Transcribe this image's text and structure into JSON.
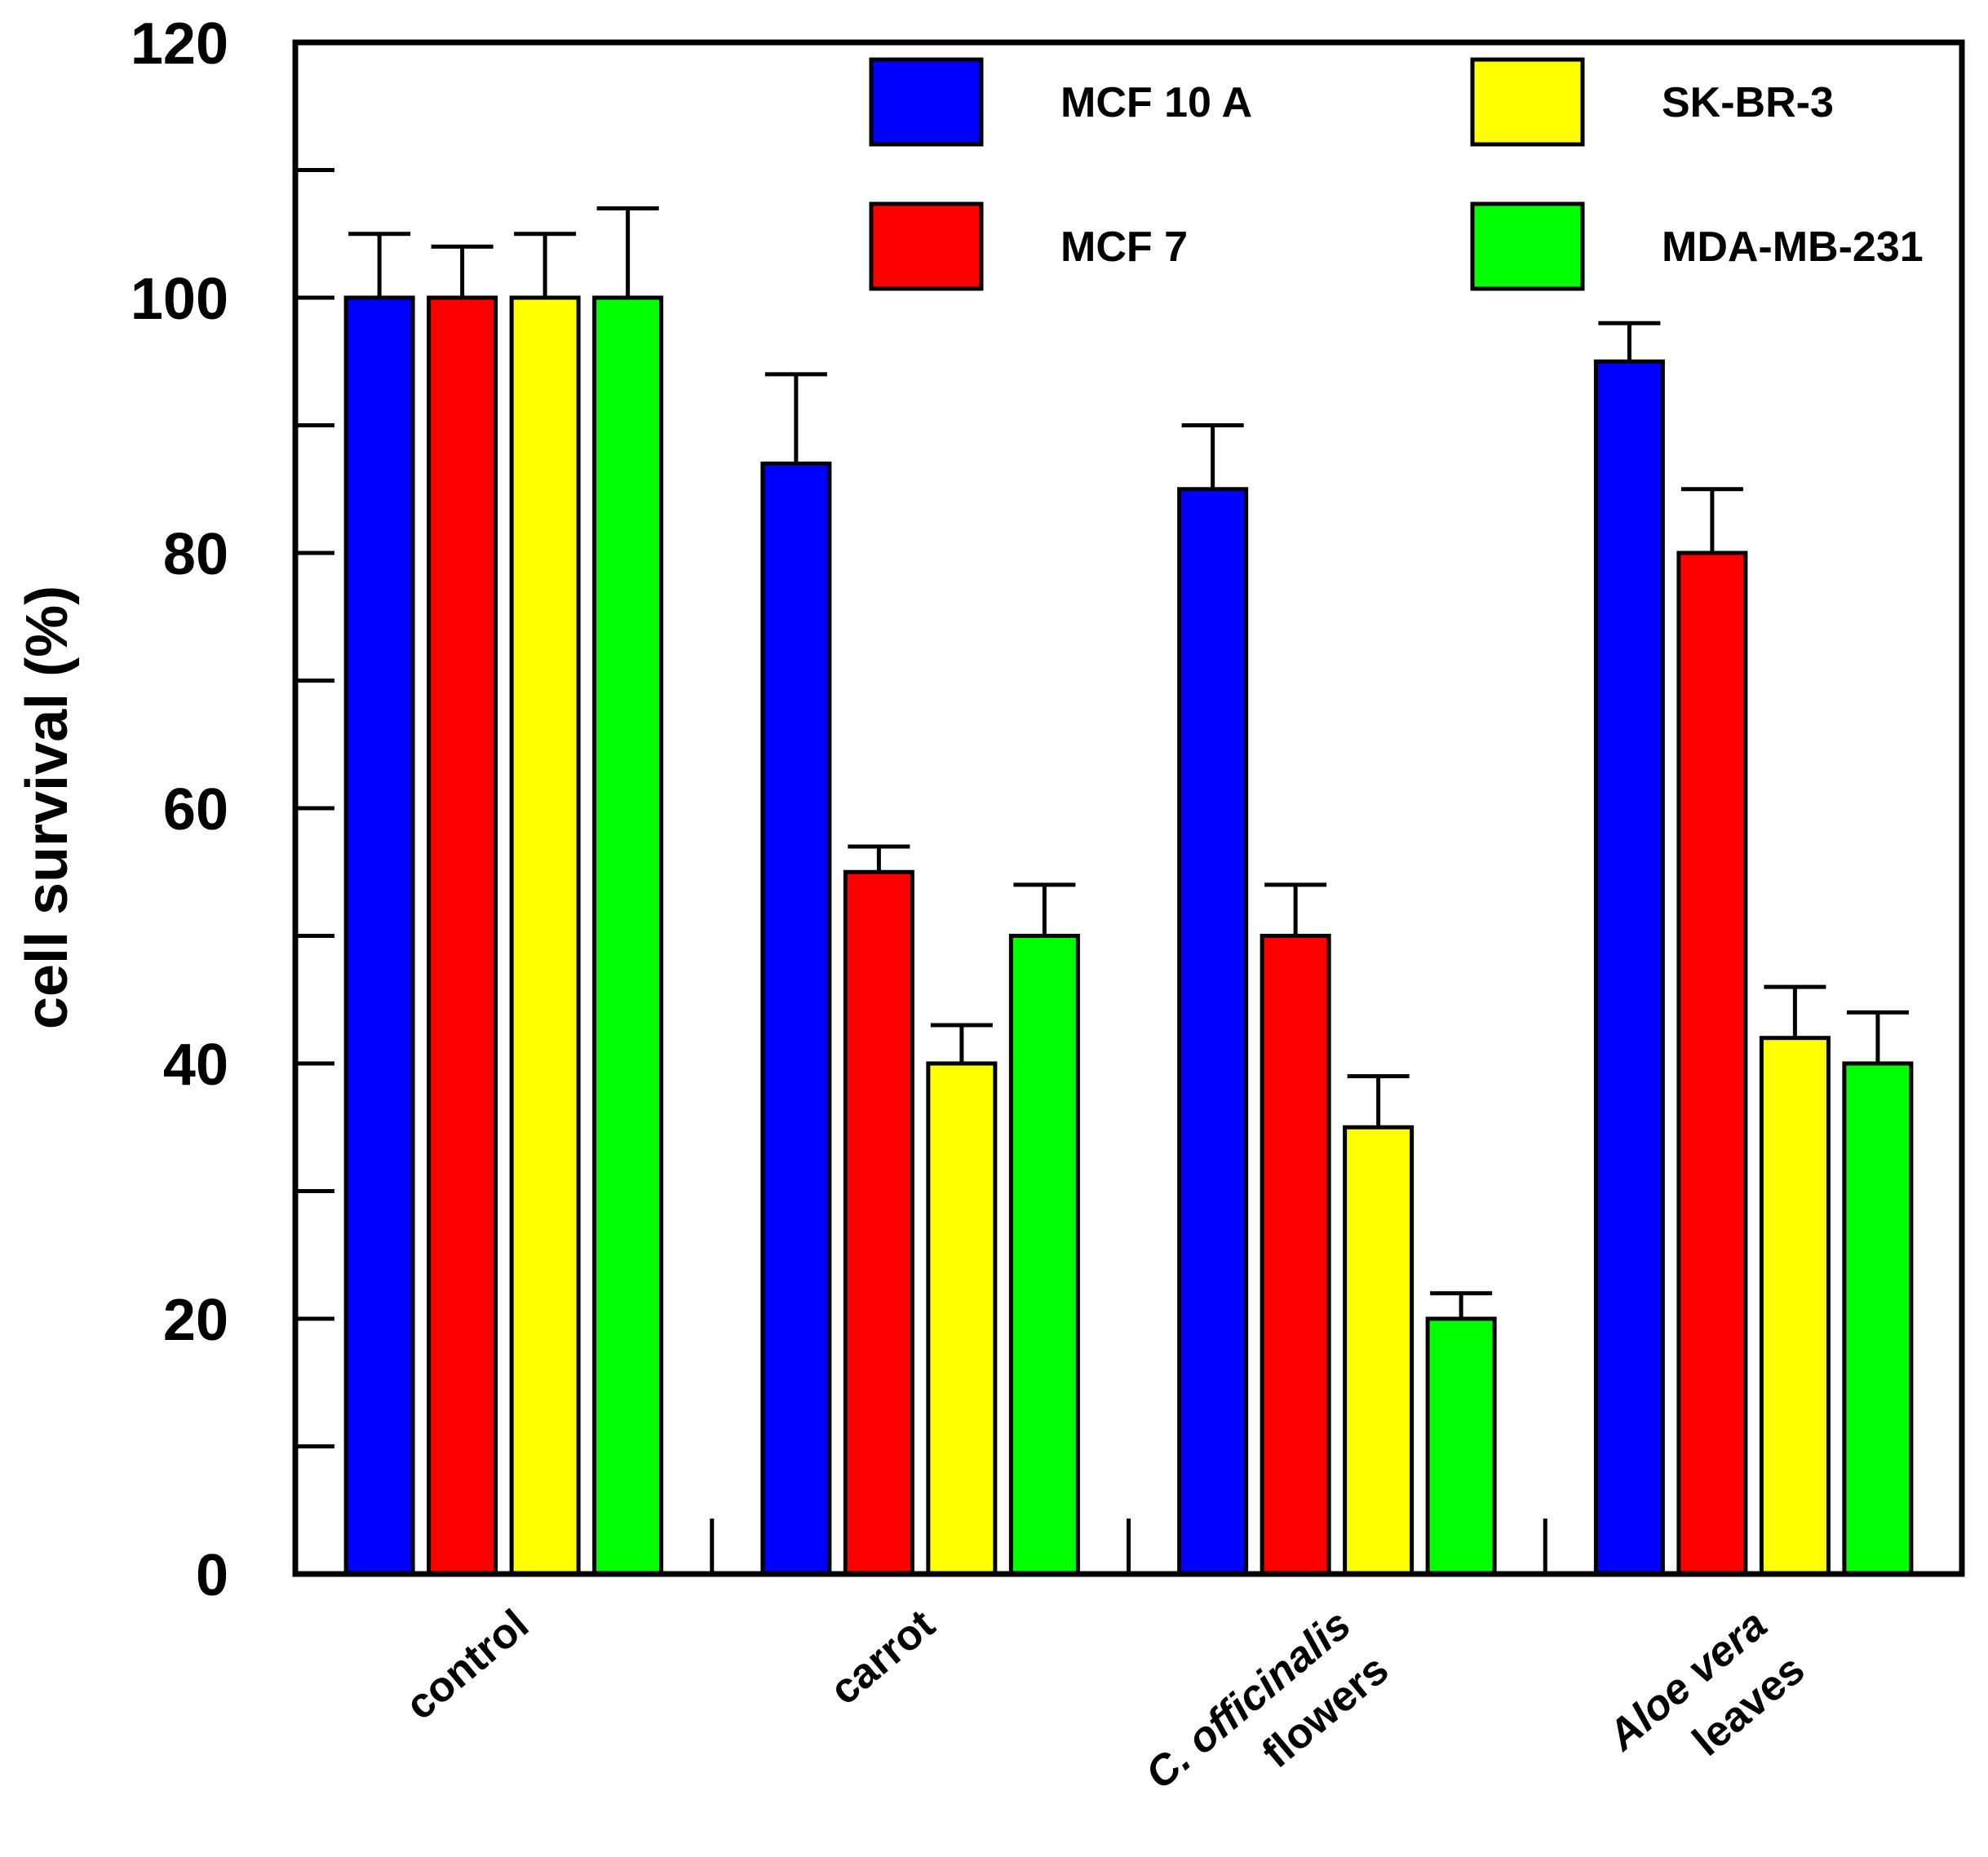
{
  "chart_data": {
    "type": "bar",
    "title": "",
    "xlabel": "",
    "ylabel": "cell survival (%)",
    "ylim": [
      0,
      120
    ],
    "yticks": [
      0,
      20,
      40,
      60,
      80,
      100,
      120
    ],
    "minor_yticks": [
      10,
      30,
      50,
      70,
      90,
      110
    ],
    "categories": [
      {
        "lines": [
          "control"
        ],
        "italic": [
          false
        ]
      },
      {
        "lines": [
          "carrot"
        ],
        "italic": [
          false
        ]
      },
      {
        "lines": [
          "C. officinalis",
          "flowers"
        ],
        "italic": [
          true,
          false
        ]
      },
      {
        "lines": [
          "Aloe vera",
          "leaves"
        ],
        "italic": [
          true,
          false
        ]
      }
    ],
    "series": [
      {
        "name": "MCF 10 A",
        "color": "#0000ff",
        "values": [
          100,
          87,
          85,
          95
        ],
        "errors": [
          5,
          7,
          5,
          3
        ]
      },
      {
        "name": "MCF 7",
        "color": "#ff0000",
        "values": [
          100,
          55,
          50,
          80
        ],
        "errors": [
          4,
          2,
          4,
          5
        ]
      },
      {
        "name": "SK-BR-3",
        "color": "#ffff00",
        "values": [
          100,
          40,
          35,
          42
        ],
        "errors": [
          5,
          3,
          4,
          4
        ]
      },
      {
        "name": "MDA-MB-231",
        "color": "#00ff00",
        "values": [
          100,
          50,
          20,
          40
        ],
        "errors": [
          7,
          4,
          2,
          4
        ]
      }
    ],
    "legend_position": "top-right",
    "grid": false
  }
}
